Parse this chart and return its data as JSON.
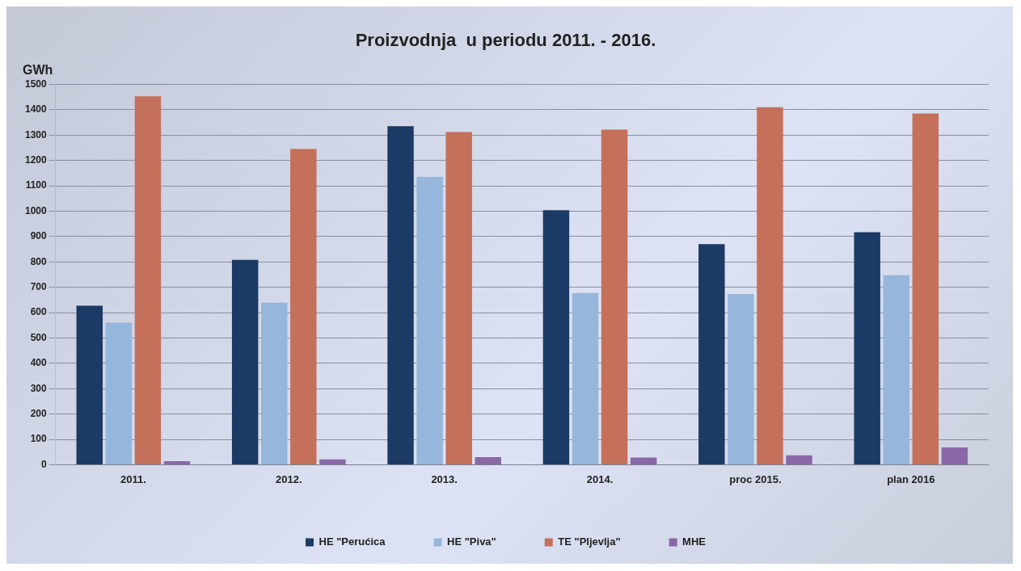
{
  "chart_data": {
    "type": "bar",
    "title": "Proizvodnja  u periodu 2011. - 2016.",
    "ylabel": "GWh",
    "categories": [
      "2011.",
      "2012.",
      "2013.",
      "2014.",
      "proc 2015.",
      "plan 2016"
    ],
    "series": [
      {
        "name": "HE \"Perućica",
        "color": "#1b3a66",
        "values": [
          627,
          808,
          1335,
          1004,
          870,
          917
        ]
      },
      {
        "name": "HE \"Piva\"",
        "color": "#97b6db",
        "values": [
          560,
          639,
          1135,
          677,
          673,
          747
        ]
      },
      {
        "name": "TE \"Pljevlja\"",
        "color": "#c4705a",
        "values": [
          1453,
          1245,
          1312,
          1321,
          1410,
          1385
        ]
      },
      {
        "name": "MHE",
        "color": "#8a68a8",
        "values": [
          14,
          21,
          30,
          28,
          37,
          68
        ]
      }
    ],
    "ylim": [
      0,
      1500
    ],
    "yticks": [
      0,
      100,
      200,
      300,
      400,
      500,
      600,
      700,
      800,
      900,
      1000,
      1100,
      1200,
      1300,
      1400,
      1500
    ],
    "grid": "y",
    "legend": "bottom"
  }
}
